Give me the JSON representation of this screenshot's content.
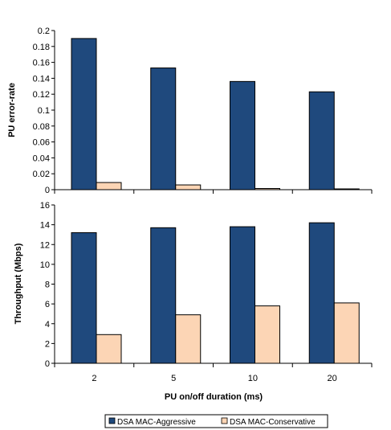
{
  "chart_data": [
    {
      "type": "bar",
      "categories": [
        "2",
        "5",
        "10",
        "20"
      ],
      "series": [
        {
          "name": "DSA MAC-Aggressive",
          "values": [
            0.19,
            0.153,
            0.136,
            0.123
          ],
          "color": "#1F497D"
        },
        {
          "name": "DSA MAC-Conservative",
          "values": [
            0.009,
            0.006,
            0.0015,
            0.001
          ],
          "color": "#FCD5B5"
        }
      ],
      "title": "",
      "xlabel": "",
      "ylabel": "PU error-rate",
      "ylim": [
        0,
        0.2
      ],
      "yticks": [
        "0",
        "0.02",
        "0.04",
        "0.06",
        "0.08",
        "0.1",
        "0.12",
        "0.14",
        "0.16",
        "0.18",
        "0.2"
      ],
      "grid": false
    },
    {
      "type": "bar",
      "categories": [
        "2",
        "5",
        "10",
        "20"
      ],
      "series": [
        {
          "name": "DSA MAC-Aggressive",
          "values": [
            13.2,
            13.7,
            13.8,
            14.2
          ],
          "color": "#1F497D"
        },
        {
          "name": "DSA MAC-Conservative",
          "values": [
            2.9,
            4.9,
            5.8,
            6.1
          ],
          "color": "#FCD5B5"
        }
      ],
      "title": "",
      "xlabel": "PU on/off duration (ms)",
      "ylabel": "Throughput (Mbps)",
      "ylim": [
        0,
        16
      ],
      "yticks": [
        "0",
        "2",
        "4",
        "6",
        "8",
        "10",
        "12",
        "14",
        "16"
      ],
      "grid": false
    }
  ],
  "legend": {
    "placement": "bottom",
    "items": [
      "DSA MAC-Aggressive",
      "DSA MAC-Conservative"
    ]
  }
}
